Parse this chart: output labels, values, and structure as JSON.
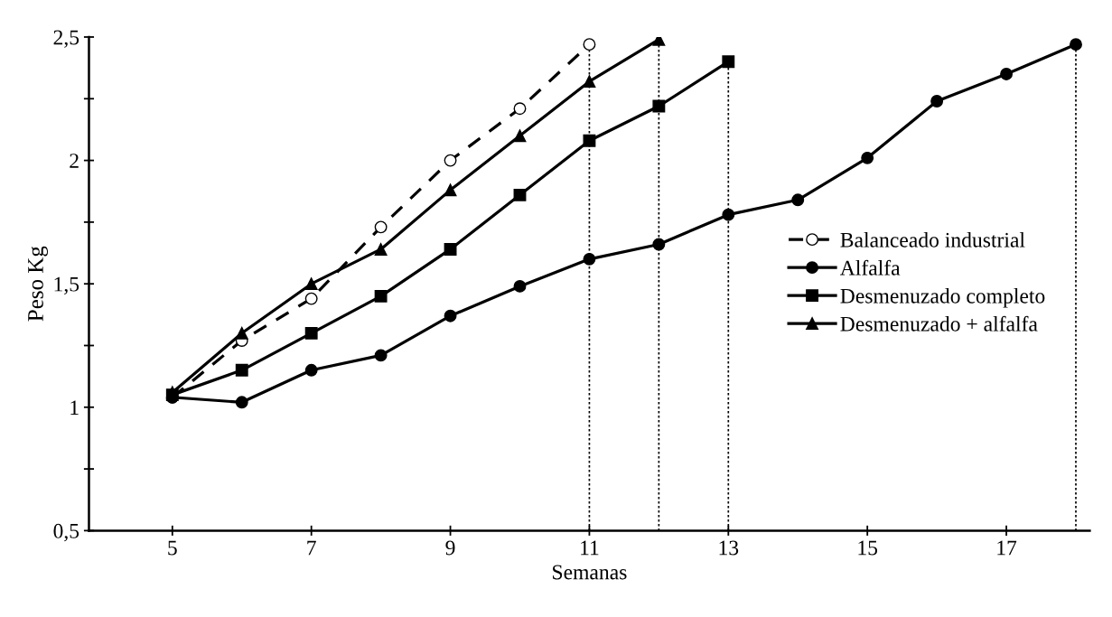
{
  "chart_data": {
    "type": "line",
    "xlabel": "Semanas",
    "ylabel": "Peso Kg",
    "series": [
      {
        "name": "Balanceado industrial",
        "color": "#000000",
        "marker": "circle",
        "line_style": "dashed",
        "x": [
          5,
          6,
          7,
          8,
          9,
          10,
          11
        ],
        "values": [
          1.04,
          1.27,
          1.44,
          1.73,
          2.0,
          2.21,
          2.47
        ]
      },
      {
        "name": "Alfalfa",
        "color": "#000000",
        "marker": "circle",
        "line_style": "solid",
        "x": [
          5,
          6,
          7,
          8,
          9,
          10,
          11,
          12,
          13,
          14,
          15,
          16,
          17,
          18
        ],
        "values": [
          1.04,
          1.02,
          1.15,
          1.21,
          1.37,
          1.49,
          1.6,
          1.66,
          1.78,
          1.84,
          2.01,
          2.24,
          2.35,
          2.47
        ]
      },
      {
        "name": "Desmenuzado completo",
        "color": "#000000",
        "marker": "square",
        "line_style": "solid",
        "x": [
          5,
          6,
          7,
          8,
          9,
          10,
          11,
          12,
          13
        ],
        "values": [
          1.05,
          1.15,
          1.3,
          1.45,
          1.64,
          1.86,
          2.08,
          2.22,
          2.4
        ]
      },
      {
        "name": "Desmenuzado + alfalfa",
        "color": "#000000",
        "marker": "triangle",
        "line_style": "solid",
        "x": [
          5,
          6,
          7,
          8,
          9,
          10,
          11,
          12
        ],
        "values": [
          1.06,
          1.3,
          1.5,
          1.64,
          1.88,
          2.1,
          2.32,
          2.49
        ]
      }
    ],
    "ref_lines": [
      {
        "axis": "x",
        "value": 11,
        "line_style": "dotted",
        "color": "#000000"
      },
      {
        "axis": "x",
        "value": 12,
        "line_style": "dotted",
        "color": "#000000"
      },
      {
        "axis": "x",
        "value": 13,
        "line_style": "dotted",
        "color": "#000000"
      },
      {
        "axis": "x",
        "value": 18,
        "line_style": "dotted",
        "color": "#000000"
      }
    ],
    "xlim": [
      3.8,
      18.2
    ],
    "ylim": [
      0.5,
      2.5
    ],
    "xticks": [
      5,
      7,
      9,
      11,
      13,
      15,
      17
    ],
    "yticks": [
      {
        "value": 0.5,
        "label": "0,5"
      },
      {
        "value": 0.75,
        "label": null
      },
      1,
      {
        "value": 1.25,
        "label": null
      },
      {
        "value": 1.5,
        "label": "1,5"
      },
      {
        "value": 1.75,
        "label": null
      },
      2,
      {
        "value": 2.25,
        "label": null
      },
      {
        "value": 2.5,
        "label": "2,5"
      }
    ],
    "grid": false,
    "legend": "right"
  }
}
